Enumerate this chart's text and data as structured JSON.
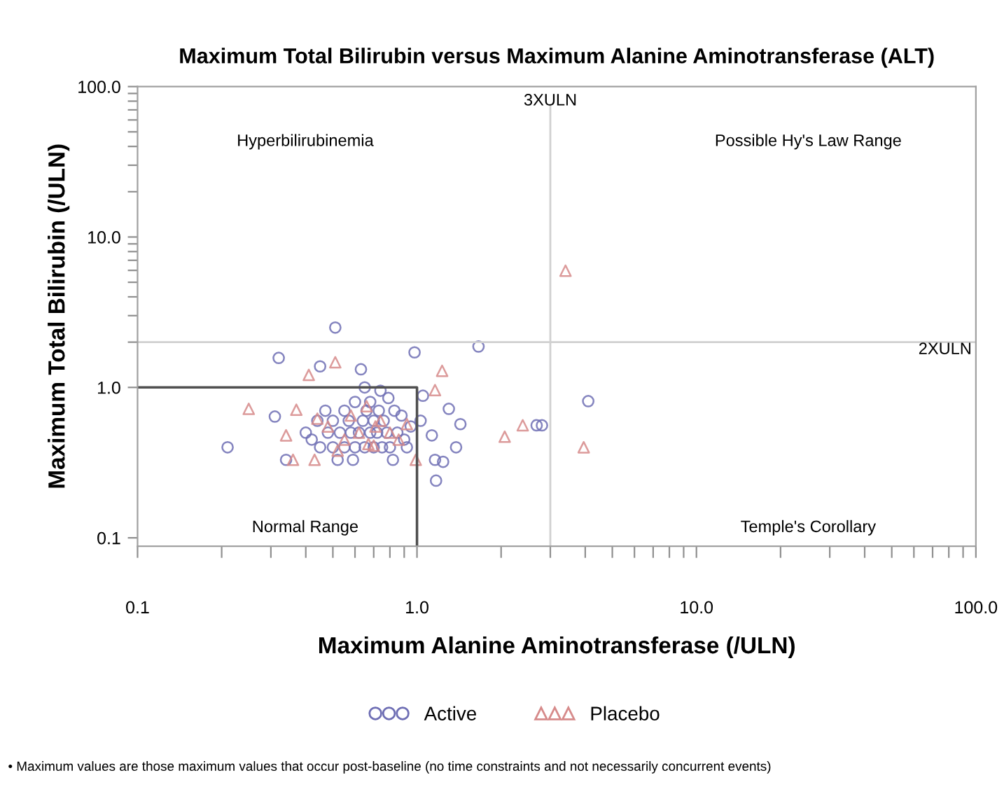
{
  "chart_data": {
    "type": "scatter",
    "title": "Maximum Total Bilirubin versus Maximum Alanine Aminotransferase (ALT)",
    "xlabel": "Maximum Alanine Aminotransferase (/ULN)",
    "ylabel": "Maximum Total Bilirubin (/ULN)",
    "log": "xy",
    "xlim": [
      0.1,
      100
    ],
    "ylim": [
      0.088,
      100
    ],
    "xticks": [
      {
        "value": 0.1,
        "label": "0.1"
      },
      {
        "value": 0.2,
        "label": null
      },
      {
        "value": 0.3,
        "label": null
      },
      {
        "value": 0.4,
        "label": null
      },
      {
        "value": 0.5,
        "label": null
      },
      {
        "value": 0.6,
        "label": null
      },
      {
        "value": 0.7,
        "label": null
      },
      {
        "value": 0.8,
        "label": null
      },
      {
        "value": 0.9,
        "label": null
      },
      {
        "value": 1,
        "label": "1.0"
      },
      {
        "value": 2,
        "label": null
      },
      {
        "value": 3,
        "label": null
      },
      {
        "value": 4,
        "label": null
      },
      {
        "value": 5,
        "label": null
      },
      {
        "value": 6,
        "label": null
      },
      {
        "value": 7,
        "label": null
      },
      {
        "value": 8,
        "label": null
      },
      {
        "value": 9,
        "label": null
      },
      {
        "value": 10,
        "label": "10.0"
      },
      {
        "value": 20,
        "label": null
      },
      {
        "value": 30,
        "label": null
      },
      {
        "value": 40,
        "label": null
      },
      {
        "value": 50,
        "label": null
      },
      {
        "value": 60,
        "label": null
      },
      {
        "value": 70,
        "label": null
      },
      {
        "value": 80,
        "label": null
      },
      {
        "value": 90,
        "label": null
      },
      {
        "value": 100,
        "label": "100.0"
      }
    ],
    "yticks": [
      {
        "value": 0.1,
        "label": "0.1"
      },
      {
        "value": 1,
        "label": "1.0"
      },
      {
        "value": 2,
        "label": null
      },
      {
        "value": 3,
        "label": null
      },
      {
        "value": 4,
        "label": null
      },
      {
        "value": 5,
        "label": null
      },
      {
        "value": 6,
        "label": null
      },
      {
        "value": 7,
        "label": null
      },
      {
        "value": 8,
        "label": null
      },
      {
        "value": 9,
        "label": null
      },
      {
        "value": 10,
        "label": "10.0"
      },
      {
        "value": 20,
        "label": null
      },
      {
        "value": 30,
        "label": null
      },
      {
        "value": 40,
        "label": null
      },
      {
        "value": 50,
        "label": null
      },
      {
        "value": 60,
        "label": null
      },
      {
        "value": 70,
        "label": null
      },
      {
        "value": 80,
        "label": null
      },
      {
        "value": 90,
        "label": null
      },
      {
        "value": 100,
        "label": "100.0"
      }
    ],
    "grid": false,
    "legend": "bottom",
    "ref_lines": [
      {
        "axis": "x",
        "value": 3,
        "label": "3XULN",
        "color": "#d0d0d0"
      },
      {
        "axis": "y",
        "value": 2,
        "label": "2XULN",
        "color": "#d0d0d0"
      }
    ],
    "annotations": [
      "Hyperbilirubinemia",
      "Possible Hy's Law Range",
      "Normal Range",
      "Temple's Corollary",
      "• Maximum values are those maximum values that occur post-baseline (no time constraints and not necessarily concurrent events)"
    ],
    "series": [
      {
        "name": "Active",
        "marker": "circle",
        "color": "#6e6eb4",
        "x": [
          0.51,
          0.32,
          0.98,
          1.66,
          0.45,
          0.63,
          0.31,
          0.21,
          1.17,
          1.3,
          1.43,
          1.38,
          1.16,
          1.24,
          1.13,
          1.03,
          1.05,
          0.82,
          0.59,
          0.52,
          0.34,
          0.92,
          4.1,
          2.68,
          2.8,
          0.45,
          0.5,
          0.55,
          0.6,
          0.65,
          0.7,
          0.75,
          0.8,
          0.9,
          0.48,
          0.53,
          0.58,
          0.62,
          0.68,
          0.72,
          0.78,
          0.85,
          0.95,
          0.44,
          0.5,
          0.57,
          0.64,
          0.7,
          0.76,
          0.88,
          0.47,
          0.55,
          0.66,
          0.73,
          0.83,
          0.6,
          0.68,
          0.79,
          0.65,
          0.74,
          0.4,
          0.42
        ],
        "values": [
          2.5,
          1.57,
          1.71,
          1.87,
          1.38,
          1.32,
          0.64,
          0.4,
          0.24,
          0.72,
          0.57,
          0.4,
          0.33,
          0.32,
          0.48,
          0.6,
          0.88,
          0.33,
          0.33,
          0.33,
          0.33,
          0.4,
          0.81,
          0.56,
          0.56,
          0.4,
          0.4,
          0.4,
          0.4,
          0.4,
          0.4,
          0.4,
          0.4,
          0.45,
          0.5,
          0.5,
          0.5,
          0.5,
          0.5,
          0.5,
          0.5,
          0.5,
          0.55,
          0.6,
          0.6,
          0.6,
          0.6,
          0.6,
          0.6,
          0.65,
          0.7,
          0.7,
          0.7,
          0.7,
          0.7,
          0.8,
          0.8,
          0.85,
          1.0,
          0.95,
          0.5,
          0.45
        ]
      },
      {
        "name": "Placebo",
        "marker": "triangle",
        "color": "#d68a8a",
        "x": [
          3.4,
          2.39,
          2.06,
          3.95,
          0.51,
          1.23,
          0.25,
          0.41,
          1.16,
          0.37,
          0.99,
          0.36,
          0.43,
          0.34,
          0.7,
          0.92,
          0.48,
          0.55,
          0.62,
          0.67,
          0.74,
          0.8,
          0.58,
          0.66,
          0.44,
          0.86,
          0.52,
          0.71
        ],
        "values": [
          5.97,
          0.56,
          0.47,
          0.4,
          1.47,
          1.29,
          0.72,
          1.21,
          0.96,
          0.71,
          0.33,
          0.33,
          0.33,
          0.48,
          0.41,
          0.57,
          0.55,
          0.45,
          0.5,
          0.42,
          0.6,
          0.5,
          0.65,
          0.75,
          0.62,
          0.45,
          0.38,
          0.55
        ]
      },
      {
        "type": "line",
        "color": "#505050",
        "x": [
          0.1,
          1,
          1
        ],
        "values": [
          1,
          1,
          0.088
        ]
      }
    ]
  }
}
